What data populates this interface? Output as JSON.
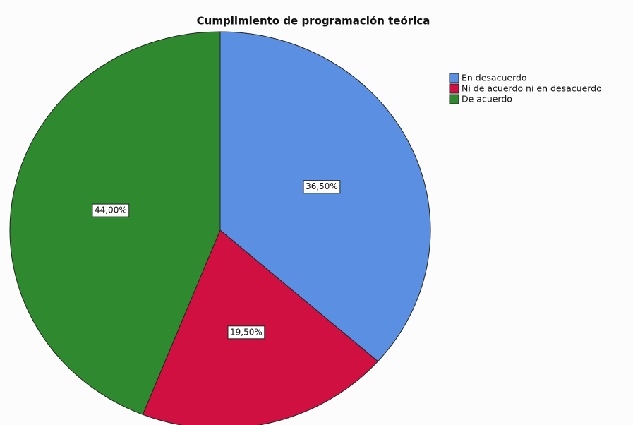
{
  "chart_data": {
    "type": "pie",
    "title": "Cumplimiento de programación teórica",
    "categories": [
      "En desacuerdo",
      "Ni de acuerdo ni en desacuerdo",
      "De acuerdo"
    ],
    "values": [
      36.5,
      19.5,
      44.0
    ],
    "value_labels": [
      "36,50%",
      "19,50%",
      "44,00%"
    ],
    "colors": [
      "#5b8fe1",
      "#cf1040",
      "#2f8a2f"
    ],
    "legend": "top-right"
  }
}
